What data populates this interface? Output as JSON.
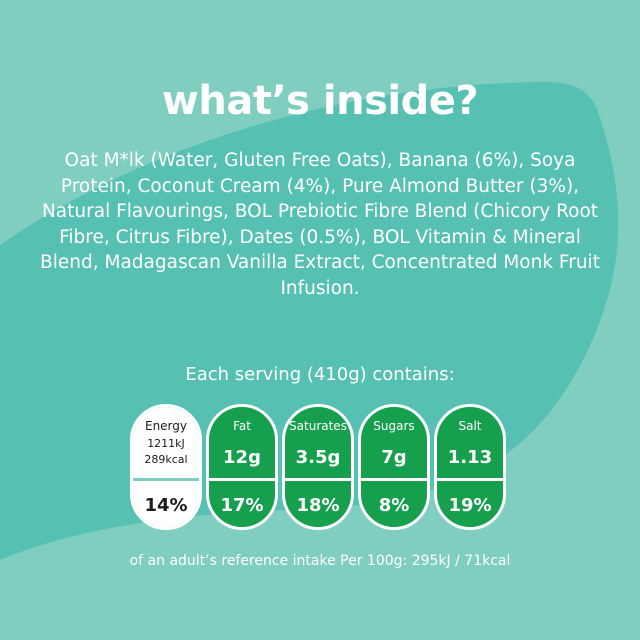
{
  "title": "what’s inside?",
  "ingredients": "Oat M*lk (Water, Gluten Free Oats), Banana (6%), Soya Protein, Coconut Cream (4%), Pure Almond Butter (3%), Natural Flavourings, BOL Prebiotic Fibre Blend (Chicory Root Fibre, Citrus Fibre), Dates (0.5%), BOL Vitamin & Mineral Blend, Madagascan Vanilla Extract, Concentrated Monk Fruit Infusion.",
  "serving_label": "Each serving (410g) contains:",
  "energy": {
    "label": "Energy",
    "kj": "1211kJ",
    "kcal": "289kcal",
    "percent": "14%"
  },
  "nutrients": [
    {
      "label": "Fat",
      "value": "12g",
      "percent": "17%"
    },
    {
      "label": "Saturates",
      "value": "3.5g",
      "percent": "18%"
    },
    {
      "label": "Sugars",
      "value": "7g",
      "percent": "8%"
    },
    {
      "label": "Salt",
      "value": "1.13",
      "percent": "19%"
    }
  ],
  "footnote": "of an adult’s reference intake Per 100g: 295kJ / 71kcal",
  "colors": {
    "background": "#7fcec0",
    "accent_shape": "#56c1b2",
    "badge_green": "#16a04e"
  }
}
